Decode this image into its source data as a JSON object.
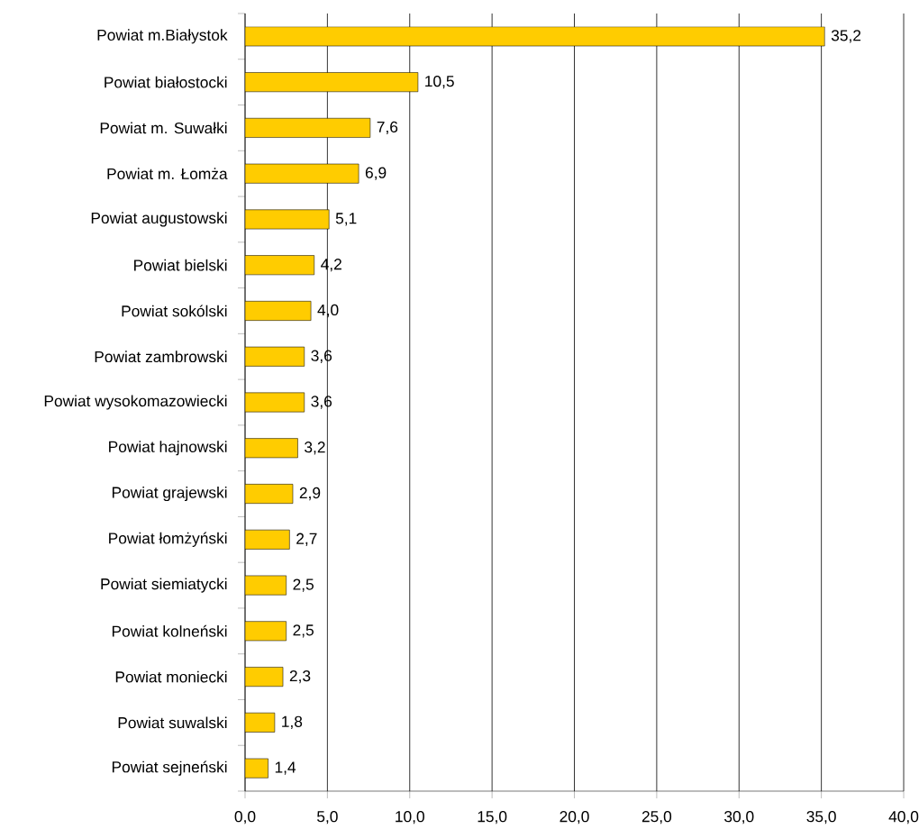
{
  "chart_data": {
    "type": "bar",
    "orientation": "horizontal",
    "categories": [
      "Powiat m.Białystok",
      "Powiat białostocki",
      "Powiat m. Suwałki",
      "Powiat m. Łomża",
      "Powiat augustowski",
      "Powiat bielski",
      "Powiat sokólski",
      "Powiat zambrowski",
      "Powiat wysokomazowiecki",
      "Powiat hajnowski",
      "Powiat grajewski",
      "Powiat łomżyński",
      "Powiat siemiatycki",
      "Powiat kolneński",
      "Powiat moniecki",
      "Powiat suwalski",
      "Powiat sejneński"
    ],
    "values": [
      35.2,
      10.5,
      7.6,
      6.9,
      5.1,
      4.2,
      4.0,
      3.6,
      3.6,
      3.2,
      2.9,
      2.7,
      2.5,
      2.5,
      2.3,
      1.8,
      1.4
    ],
    "value_labels": [
      "35,2",
      "10,5",
      "7,6",
      "6,9",
      "5,1",
      "4,2",
      "4,0",
      "3,6",
      "3,6",
      "3,2",
      "2,9",
      "2,7",
      "2,5",
      "2,5",
      "2,3",
      "1,8",
      "1,4"
    ],
    "color": "#ffcc00",
    "xlim": [
      0,
      40
    ],
    "xticks": [
      {
        "value": 0,
        "label": "0,0"
      },
      {
        "value": 5,
        "label": "5,0"
      },
      {
        "value": 10,
        "label": "10,0"
      },
      {
        "value": 15,
        "label": "15,0"
      },
      {
        "value": 20,
        "label": "20,0"
      },
      {
        "value": 25,
        "label": "25,0"
      },
      {
        "value": 30,
        "label": "30,0"
      },
      {
        "value": 35,
        "label": "35,0"
      },
      {
        "value": 40,
        "label": "40,0"
      }
    ],
    "grid": "x"
  }
}
